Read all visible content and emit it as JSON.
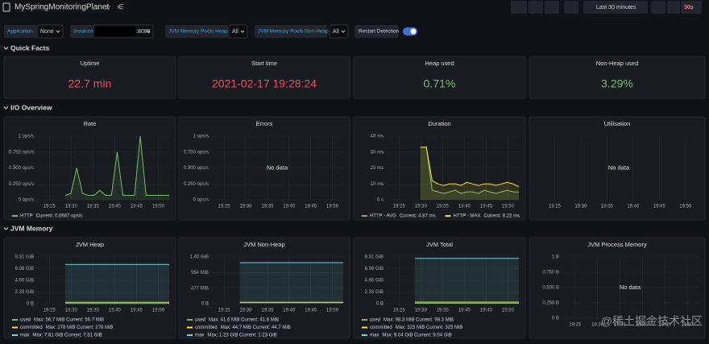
{
  "header": {
    "title": "MySpringMonitoringPlanet",
    "time_range": "Last 30 minutes",
    "refresh": "30s"
  },
  "variables": [
    {
      "label": "Application",
      "value": "None"
    },
    {
      "label": "Instance",
      "value": ":8080"
    },
    {
      "label": "JVM Memory Pools Heap",
      "value": "All"
    },
    {
      "label": "JVM Memory Pools Non-Heap",
      "value": "All"
    }
  ],
  "restart_detection": "Restart Detection",
  "rows": [
    {
      "title": "Quick Facts",
      "panels": [
        {
          "title": "Uptime",
          "value": "22.7 min",
          "color": "#f2495c"
        },
        {
          "title": "Start time",
          "value": "2021-02-17 19:28:24",
          "color": "#f2495c"
        },
        {
          "title": "Heap used",
          "value": "0.71%",
          "color": "#73bf69"
        },
        {
          "title": "Non-Heap used",
          "value": "3.29%",
          "color": "#73bf69"
        }
      ]
    },
    {
      "title": "I/O Overview",
      "panels": [
        {
          "title": "Rate",
          "ylim": [
            0,
            1
          ],
          "yticks": [
            {
              "value": 0,
              "label": "0 ops/s"
            },
            {
              "value": 0.25,
              "label": "0.250 ops/s"
            },
            {
              "value": 0.5,
              "label": "0.500 ops/s"
            },
            {
              "value": 0.75,
              "label": "0.750 ops/s"
            },
            {
              "value": 1,
              "label": "1 ops/s"
            }
          ],
          "xticks": [
            "19:25",
            "19:30",
            "19:35",
            "19:40",
            "19:45",
            "19:50"
          ],
          "series": [
            {
              "name": "HTTP",
              "legend": "Current: 0.0667 ops/s",
              "color": "#73bf69",
              "values": [
                null,
                null,
                null,
                null,
                null,
                0.07,
                0.1,
                0.5,
                0.1,
                0.07,
                0.07,
                0.15,
                0.07,
                0.07,
                0.75,
                0.07,
                0.07,
                0.07,
                1.0,
                0.07,
                0.07,
                0.07,
                0.07,
                0.07
              ]
            }
          ]
        },
        {
          "title": "Errors",
          "ylim": [
            0,
            1
          ],
          "yticks": [
            {
              "value": 0,
              "label": "0 ops/s"
            },
            {
              "value": 0.25,
              "label": "0.250 ops/s"
            },
            {
              "value": 0.5,
              "label": "0.500 ops/s"
            },
            {
              "value": 0.75,
              "label": "0.750 ops/s"
            },
            {
              "value": 1,
              "label": "1 ops/s"
            }
          ],
          "xticks": [
            "19:25",
            "19:30",
            "19:35",
            "19:40",
            "19:45",
            "19:50"
          ],
          "no_data": "No data"
        },
        {
          "title": "Duration",
          "ylim": [
            0,
            40
          ],
          "legend_inline": true,
          "yticks": [
            {
              "value": 0,
              "label": "0 s"
            },
            {
              "value": 10,
              "label": "10 ms"
            },
            {
              "value": 20,
              "label": "20 ms"
            },
            {
              "value": 30,
              "label": "30 ms"
            },
            {
              "value": 40,
              "label": "40 ms"
            }
          ],
          "xticks": [
            "19:25",
            "19:30",
            "19:35",
            "19:40",
            "19:45",
            "19:50"
          ],
          "series": [
            {
              "name": "HTTP - AVG",
              "legend": "Current: 4.87 ms",
              "color": "#73bf69",
              "values": [
                null,
                null,
                null,
                null,
                null,
                null,
                33,
                33,
                6,
                5,
                4,
                5,
                6,
                4,
                5,
                5,
                4,
                6,
                5,
                4,
                5,
                6,
                5,
                4.87
              ]
            },
            {
              "name": "HTTP - MAX",
              "legend": "Current: 8.22 ms",
              "color": "#fade2a",
              "values": [
                null,
                null,
                null,
                null,
                null,
                null,
                33,
                33,
                12,
                10,
                9,
                10,
                10,
                9,
                11,
                10,
                9,
                10,
                10,
                9,
                10,
                11,
                10,
                8.22
              ]
            }
          ]
        },
        {
          "title": "Utilisation",
          "xticks": [
            "19:25",
            "19:30",
            "19:35",
            "19:40",
            "19:45",
            "19:50"
          ],
          "no_data": "No data"
        }
      ]
    },
    {
      "title": "JVM Memory",
      "panels": [
        {
          "title": "JVM Heap",
          "ylim": [
            0,
            9.31
          ],
          "yticks": [
            {
              "value": 0,
              "label": "0 B"
            },
            {
              "value": 2.33,
              "label": "2.33 GiB"
            },
            {
              "value": 4.66,
              "label": "4.66 GiB"
            },
            {
              "value": 6.98,
              "label": "6.98 GiB"
            },
            {
              "value": 9.31,
              "label": "9.31 GiB"
            }
          ],
          "xticks": [
            "19:25",
            "19:30",
            "19:35",
            "19:40",
            "19:45",
            "19:50"
          ],
          "series": [
            {
              "name": "used",
              "legend": "Max: 56.7 MiB  Current: 56.7 MiB",
              "color": "#73bf69",
              "values": [
                null,
                null,
                null,
                null,
                null,
                0.055,
                0.055,
                0.055,
                0.055,
                0.055,
                0.055,
                0.055,
                0.055,
                0.055,
                0.055,
                0.055,
                0.055,
                0.055,
                0.055,
                0.055,
                0.055,
                0.055,
                0.055,
                0.055
              ]
            },
            {
              "name": "committed",
              "legend": "Max: 278 MiB  Current: 278 MiB",
              "color": "#fade2a",
              "values": [
                null,
                null,
                null,
                null,
                null,
                0.27,
                0.27,
                0.27,
                0.27,
                0.27,
                0.27,
                0.27,
                0.27,
                0.27,
                0.27,
                0.27,
                0.27,
                0.27,
                0.27,
                0.27,
                0.27,
                0.27,
                0.27,
                0.27
              ]
            },
            {
              "name": "max",
              "legend": "Max: 7.81 GiB  Current: 7.81 GiB",
              "color": "#6ed0e0",
              "values": [
                null,
                null,
                null,
                null,
                null,
                7.81,
                7.81,
                7.81,
                7.81,
                7.81,
                7.81,
                7.81,
                7.81,
                7.81,
                7.81,
                7.81,
                7.81,
                7.81,
                7.81,
                7.81,
                7.81,
                7.81,
                7.81,
                7.81
              ]
            }
          ]
        },
        {
          "title": "JVM Non-Heap",
          "ylim": [
            0,
            1433.6
          ],
          "yticks": [
            {
              "value": 0,
              "label": "0 B"
            },
            {
              "value": 477,
              "label": "477 MiB"
            },
            {
              "value": 954,
              "label": "954 MiB"
            },
            {
              "value": 1433.6,
              "label": "1.40 GiB"
            }
          ],
          "xticks": [
            "19:25",
            "19:30",
            "19:35",
            "19:40",
            "19:45",
            "19:50"
          ],
          "series": [
            {
              "name": "used",
              "legend": "Max: 41.6 MiB  Current: 41.6 MiB",
              "color": "#73bf69",
              "values": [
                null,
                null,
                null,
                null,
                null,
                41.6,
                41.6,
                41.6,
                41.6,
                41.6,
                41.6,
                41.6,
                41.6,
                41.6,
                41.6,
                41.6,
                41.6,
                41.6,
                41.6,
                41.6,
                41.6,
                41.6,
                41.6,
                41.6
              ]
            },
            {
              "name": "committed",
              "legend": "Max: 44.7 MiB  Current: 44.7 MiB",
              "color": "#fade2a",
              "values": [
                null,
                null,
                null,
                null,
                null,
                44.7,
                44.7,
                44.7,
                44.7,
                44.7,
                44.7,
                44.7,
                44.7,
                44.7,
                44.7,
                44.7,
                44.7,
                44.7,
                44.7,
                44.7,
                44.7,
                44.7,
                44.7,
                44.7
              ]
            },
            {
              "name": "max",
              "legend": "Max: 1.23 GiB  Current: 1.23 GiB",
              "color": "#6ed0e0",
              "values": [
                null,
                null,
                null,
                null,
                null,
                1259.5,
                1259.5,
                1259.5,
                1259.5,
                1259.5,
                1259.5,
                1259.5,
                1259.5,
                1259.5,
                1259.5,
                1259.5,
                1259.5,
                1259.5,
                1259.5,
                1259.5,
                1259.5,
                1259.5,
                1259.5,
                1259.5
              ]
            }
          ]
        },
        {
          "title": "JVM Total",
          "ylim": [
            0,
            9.31
          ],
          "yticks": [
            {
              "value": 0,
              "label": "0 B"
            },
            {
              "value": 2.33,
              "label": "2.33 GiB"
            },
            {
              "value": 4.66,
              "label": "4.66 GiB"
            },
            {
              "value": 6.98,
              "label": "6.98 GiB"
            },
            {
              "value": 9.31,
              "label": "9.31 GiB"
            }
          ],
          "xticks": [
            "19:25",
            "19:30",
            "19:35",
            "19:40",
            "19:45",
            "19:50"
          ],
          "series": [
            {
              "name": "used",
              "legend": "Max: 98.3 MiB  Current: 98.3 MiB",
              "color": "#73bf69",
              "values": [
                null,
                null,
                null,
                null,
                null,
                0.096,
                0.096,
                0.096,
                0.096,
                0.096,
                0.096,
                0.096,
                0.096,
                0.096,
                0.096,
                0.096,
                0.096,
                0.096,
                0.096,
                0.096,
                0.096,
                0.096,
                0.096,
                0.096
              ]
            },
            {
              "name": "committed",
              "legend": "Max: 323 MiB  Current: 323 MiB",
              "color": "#fade2a",
              "values": [
                null,
                null,
                null,
                null,
                null,
                0.315,
                0.315,
                0.315,
                0.315,
                0.315,
                0.315,
                0.315,
                0.315,
                0.315,
                0.315,
                0.315,
                0.315,
                0.315,
                0.315,
                0.315,
                0.315,
                0.315,
                0.315,
                0.315
              ]
            },
            {
              "name": "max",
              "legend": "Max: 9.04 GiB  Current: 9.04 GiB",
              "color": "#6ed0e0",
              "values": [
                null,
                null,
                null,
                null,
                null,
                9.04,
                9.04,
                9.04,
                9.04,
                9.04,
                9.04,
                9.04,
                9.04,
                9.04,
                9.04,
                9.04,
                9.04,
                9.04,
                9.04,
                9.04,
                9.04,
                9.04,
                9.04,
                9.04
              ]
            }
          ]
        },
        {
          "title": "JVM Process Memory",
          "ylim": [
            0,
            1
          ],
          "yticks": [
            {
              "value": 0,
              "label": "0 B"
            },
            {
              "value": 0.25,
              "label": "0.250 B"
            },
            {
              "value": 0.5,
              "label": "0.500 B"
            },
            {
              "value": 0.75,
              "label": "0.750 B"
            },
            {
              "value": 1,
              "label": "1 B"
            }
          ],
          "xticks": [
            "19:25",
            "19:30",
            "19:35",
            "19:40",
            "19:45",
            "19:50"
          ],
          "no_data": "No data"
        }
      ]
    }
  ],
  "watermark": "@稀土掘金技术社区"
}
